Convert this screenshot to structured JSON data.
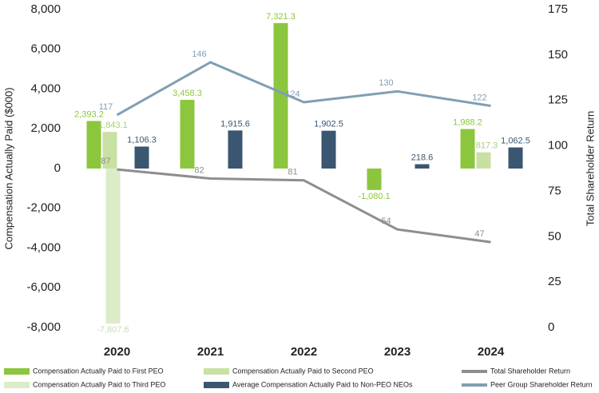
{
  "chart_data": {
    "type": "bar_line",
    "y_label": "Compensation Actually Paid ($000)",
    "y2_label": "Total Shareholder Return",
    "categories": [
      "2020",
      "2021",
      "2022",
      "2023",
      "2024"
    ],
    "ylim": [
      -8000,
      8000
    ],
    "yticks": [
      {
        "value": -8000,
        "label": "-8,000"
      },
      {
        "value": -6000,
        "label": "-6,000"
      },
      {
        "value": -4000,
        "label": "-4,000"
      },
      {
        "value": -2000,
        "label": "-2,000"
      },
      0,
      {
        "value": 2000,
        "label": "2,000"
      },
      {
        "value": 4000,
        "label": "4,000"
      },
      {
        "value": 6000,
        "label": "6,000"
      },
      {
        "value": 8000,
        "label": "8,000"
      }
    ],
    "y2lim": [
      0,
      175
    ],
    "y2ticks": [
      0,
      25,
      50,
      75,
      100,
      125,
      150,
      175
    ],
    "series": [
      {
        "name": "Compensation Actually Paid to First PEO",
        "type": "bar",
        "color": "#8cc63e",
        "values": [
          2393.2,
          3458.3,
          7321.3,
          -1080.1,
          1988.2
        ],
        "value_labels": [
          "2,393.2",
          "3,458.3",
          "7,321.3",
          "-1,080.1",
          "1,988.2"
        ]
      },
      {
        "name": "Compensation Actually Paid to Second PEO",
        "type": "bar",
        "color": "#c8e1a3",
        "values": [
          1843.1,
          null,
          null,
          null,
          817.3
        ],
        "value_labels": [
          "1,843.1",
          null,
          null,
          null,
          "817.3"
        ]
      },
      {
        "name": "Compensation Actually Paid to Third PEO",
        "type": "bar",
        "color": "#dcecc9",
        "values": [
          -7807.6,
          null,
          null,
          null,
          null
        ],
        "value_labels": [
          "-7,807.6",
          null,
          null,
          null,
          null
        ]
      },
      {
        "name": "Average Compensation Actually Paid to Non-PEO NEOs",
        "type": "bar",
        "color": "#3b5670",
        "values": [
          1106.3,
          1915.6,
          1902.5,
          218.6,
          1062.5
        ],
        "value_labels": [
          "1,106.3",
          "1,915.6",
          "1,902.5",
          "218.6",
          "1,062.5"
        ]
      },
      {
        "name": "Total Shareholder Return",
        "type": "line",
        "axis": "y2",
        "color": "#8e8e8e",
        "values": [
          87,
          82,
          81,
          54,
          47
        ]
      },
      {
        "name": "Peer Group Shareholder Return",
        "type": "line",
        "axis": "y2",
        "color": "#819fb3",
        "values": [
          117,
          146,
          124,
          130,
          122
        ]
      }
    ]
  }
}
